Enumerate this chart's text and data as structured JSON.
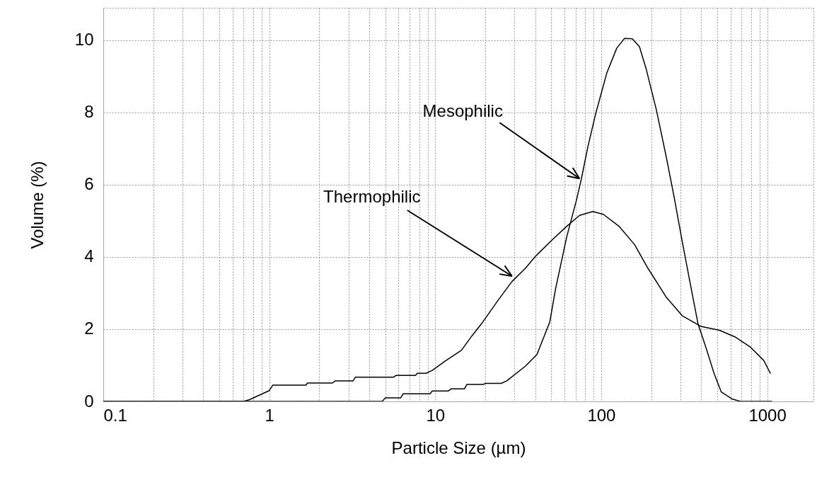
{
  "chart_data": {
    "type": "line",
    "xlabel": "Particle Size (µm)",
    "ylabel": "Volume (%)",
    "log": "x",
    "grid": true,
    "xlim": [
      0.1,
      1900
    ],
    "ylim": [
      0,
      10.9
    ],
    "xticks": [
      0.1,
      {
        "value": 0.2,
        "label": null
      },
      {
        "value": 0.3,
        "label": null
      },
      {
        "value": 0.4,
        "label": null
      },
      {
        "value": 0.5,
        "label": null
      },
      {
        "value": 0.6,
        "label": null
      },
      {
        "value": 0.7,
        "label": null
      },
      {
        "value": 0.8,
        "label": null
      },
      {
        "value": 0.9,
        "label": null
      },
      1,
      {
        "value": 2,
        "label": null
      },
      {
        "value": 3,
        "label": null
      },
      {
        "value": 4,
        "label": null
      },
      {
        "value": 5,
        "label": null
      },
      {
        "value": 6,
        "label": null
      },
      {
        "value": 7,
        "label": null
      },
      {
        "value": 8,
        "label": null
      },
      {
        "value": 9,
        "label": null
      },
      10,
      {
        "value": 20,
        "label": null
      },
      {
        "value": 30,
        "label": null
      },
      {
        "value": 40,
        "label": null
      },
      {
        "value": 50,
        "label": null
      },
      {
        "value": 60,
        "label": null
      },
      {
        "value": 70,
        "label": null
      },
      {
        "value": 80,
        "label": null
      },
      {
        "value": 90,
        "label": null
      },
      100,
      {
        "value": 200,
        "label": null
      },
      {
        "value": 300,
        "label": null
      },
      {
        "value": 400,
        "label": null
      },
      {
        "value": 500,
        "label": null
      },
      {
        "value": 600,
        "label": null
      },
      {
        "value": 700,
        "label": null
      },
      {
        "value": 800,
        "label": null
      },
      {
        "value": 900,
        "label": null
      },
      1000
    ],
    "yticks": [
      0,
      2,
      4,
      6,
      8,
      10
    ],
    "series": [
      {
        "color": "#000000",
        "x": [
          0.1,
          4.8,
          5,
          6.2,
          6.4,
          9.3,
          9.6,
          12,
          12.5,
          15,
          15.5,
          19.5,
          20,
          25,
          27,
          35,
          41,
          49,
          53,
          62,
          71,
          76,
          83,
          93,
          108,
          124,
          138,
          154,
          170,
          186,
          215,
          247,
          275,
          308,
          342,
          383,
          427,
          479,
          529,
          613,
          690,
          1070
        ],
        "values": [
          0,
          0,
          0.1,
          0.1,
          0.21,
          0.21,
          0.29,
          0.29,
          0.35,
          0.35,
          0.47,
          0.47,
          0.5,
          0.5,
          0.57,
          0.98,
          1.3,
          2.2,
          3.1,
          4.56,
          5.58,
          6.17,
          7.04,
          8.0,
          9.09,
          9.78,
          10.05,
          10.04,
          9.82,
          9.23,
          8.07,
          6.75,
          5.66,
          4.42,
          3.32,
          2.15,
          1.5,
          0.77,
          0.26,
          0.07,
          0,
          0
        ]
      },
      {
        "color": "#000000",
        "x": [
          0.1,
          0.7,
          0.76,
          1.0,
          1.05,
          1.66,
          1.7,
          2.4,
          2.5,
          3.2,
          3.3,
          5.6,
          5.8,
          7.6,
          7.8,
          8.8,
          9.6,
          11.5,
          14.4,
          16.6,
          19,
          24,
          29,
          35,
          40,
          50,
          62,
          74,
          89,
          103,
          128,
          159,
          191,
          247,
          308,
          398,
          516,
          638,
          794,
          955,
          1047
        ],
        "values": [
          0,
          0,
          0.05,
          0.3,
          0.45,
          0.45,
          0.51,
          0.51,
          0.57,
          0.57,
          0.67,
          0.67,
          0.72,
          0.72,
          0.78,
          0.78,
          0.86,
          1.12,
          1.42,
          1.81,
          2.15,
          2.81,
          3.32,
          3.69,
          4.01,
          4.45,
          4.85,
          5.15,
          5.26,
          5.18,
          4.85,
          4.34,
          3.69,
          2.88,
          2.37,
          2.08,
          1.97,
          1.79,
          1.5,
          1.13,
          0.77
        ]
      }
    ],
    "annotations": [
      {
        "text": "Mesophilic",
        "x": 74,
        "y": 6.17
      },
      {
        "text": "Thermophilic",
        "x": 29,
        "y": 3.47
      }
    ]
  }
}
